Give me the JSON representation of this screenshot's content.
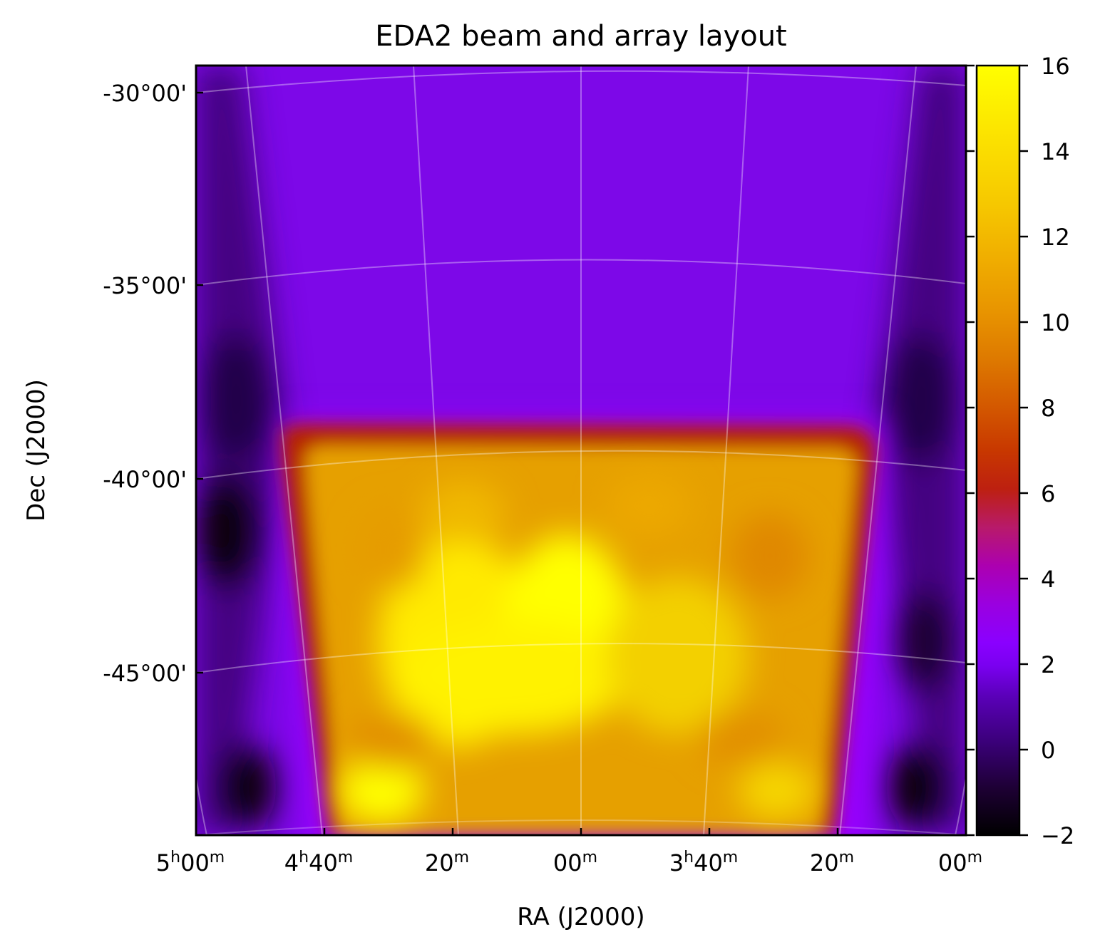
{
  "chart_data": {
    "type": "heatmap",
    "title": "EDA2 beam and array layout",
    "xlabel": "RA (J2000)",
    "ylabel": "Dec (J2000)",
    "x_tick_labels": [
      {
        "h": "5",
        "hsup": "h",
        "m": "00",
        "msup": "m"
      },
      {
        "h": "4",
        "hsup": "h",
        "m": "40",
        "msup": "m"
      },
      {
        "h": "",
        "hsup": "",
        "m": "20",
        "msup": "m"
      },
      {
        "h": "",
        "hsup": "",
        "m": "00",
        "msup": "m"
      },
      {
        "h": "3",
        "hsup": "h",
        "m": "40",
        "msup": "m"
      },
      {
        "h": "",
        "hsup": "",
        "m": "20",
        "msup": "m"
      },
      {
        "h": "",
        "hsup": "",
        "m": "00",
        "msup": "m"
      }
    ],
    "y_tick_labels": [
      "-30°00'",
      "-35°00'",
      "-40°00'",
      "-45°00'"
    ],
    "dec_values": [
      -30,
      -35,
      -40,
      -45
    ],
    "ra_minutes": [
      300,
      280,
      260,
      240,
      220,
      200,
      180
    ],
    "colorbar": {
      "min": -2,
      "max": 16,
      "ticks": [
        -2,
        0,
        2,
        4,
        6,
        8,
        10,
        12,
        14,
        16
      ],
      "tick_labels": [
        "−2",
        "0",
        "2",
        "4",
        "6",
        "8",
        "10",
        "12",
        "14",
        "16"
      ],
      "colormap": "gnuplot"
    },
    "grid": true,
    "plateau_level": 14,
    "peak_level": 16,
    "background_level": 2.5
  }
}
